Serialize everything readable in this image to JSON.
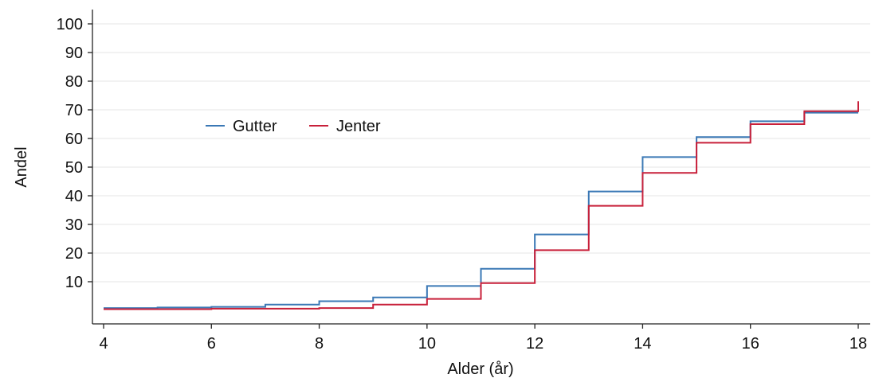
{
  "chart_data": {
    "type": "line",
    "step": "post",
    "xlabel": "Alder (år)",
    "ylabel": "Andel",
    "xlim": [
      4,
      18
    ],
    "ylim": [
      0,
      100
    ],
    "xticks": [
      4,
      6,
      8,
      10,
      12,
      14,
      16,
      18
    ],
    "yticks": [
      10,
      20,
      30,
      40,
      50,
      60,
      70,
      80,
      90,
      100
    ],
    "grid": "horizontal",
    "legend_position": "center-left",
    "series": [
      {
        "name": "Gutter",
        "color": "#3a78b5",
        "x": [
          4,
          5,
          6,
          7,
          8,
          9,
          10,
          11,
          12,
          13,
          14,
          15,
          16,
          17,
          18
        ],
        "values": [
          0.8,
          1.0,
          1.2,
          2.0,
          3.2,
          4.5,
          8.5,
          14.5,
          26.5,
          41.5,
          53.5,
          60.5,
          66.0,
          69.0,
          69.0
        ]
      },
      {
        "name": "Jenter",
        "color": "#c8203a",
        "x": [
          4,
          5,
          6,
          7,
          8,
          9,
          10,
          11,
          12,
          13,
          14,
          15,
          16,
          17,
          18
        ],
        "values": [
          0.4,
          0.4,
          0.6,
          0.6,
          0.8,
          2.0,
          4.0,
          9.5,
          21.0,
          36.5,
          48.0,
          58.5,
          65.0,
          69.5,
          73.0
        ]
      }
    ]
  }
}
